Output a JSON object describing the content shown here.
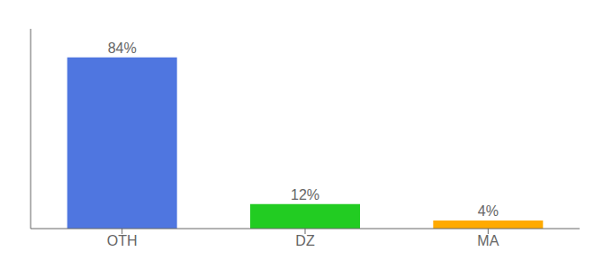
{
  "chart_data": {
    "type": "bar",
    "categories": [
      "OTH",
      "DZ",
      "MA"
    ],
    "values": [
      84,
      12,
      4
    ],
    "value_labels": [
      "84%",
      "12%",
      "4%"
    ],
    "colors": [
      "#4f76e0",
      "#22cc22",
      "#ffaa00"
    ],
    "ylim": [
      0,
      98
    ],
    "data_labels": true,
    "tick_labels": "x",
    "grid": false
  }
}
